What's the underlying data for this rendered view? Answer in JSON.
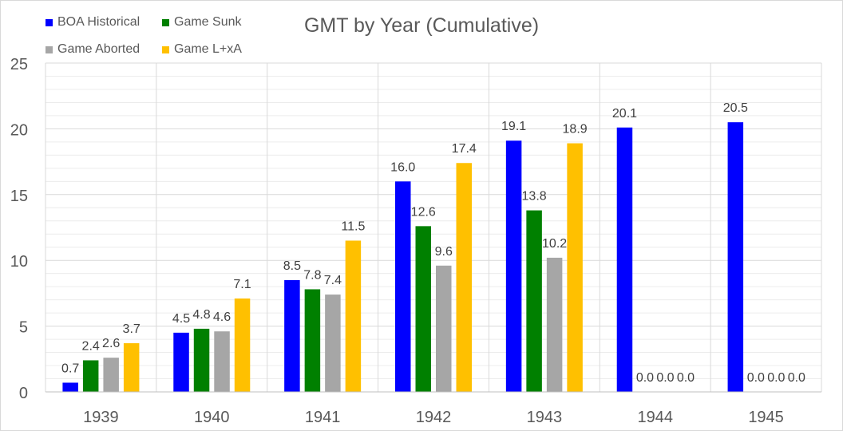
{
  "chart_data": {
    "type": "bar",
    "title": "GMT by Year (Cumulative)",
    "xlabel": "",
    "ylabel": "",
    "categories": [
      "1939",
      "1940",
      "1941",
      "1942",
      "1943",
      "1944",
      "1945"
    ],
    "ylim": [
      0,
      25
    ],
    "yticks": [
      "0",
      "5",
      "10",
      "15",
      "20",
      "25"
    ],
    "grid": true,
    "legend_position": "top-left",
    "series": [
      {
        "name": "BOA Historical",
        "color": "#0000ff",
        "values": [
          0.7,
          4.5,
          8.5,
          16.0,
          19.1,
          20.1,
          20.5
        ],
        "labels": [
          "0.7",
          "4.5",
          "8.5",
          "16.0",
          "19.1",
          "20.1",
          "20.5"
        ]
      },
      {
        "name": "Game Sunk",
        "color": "#008000",
        "values": [
          2.4,
          4.8,
          7.8,
          12.6,
          13.8,
          0.0,
          0.0
        ],
        "labels": [
          "2.4",
          "4.8",
          "7.8",
          "12.6",
          "13.8",
          "0.0",
          "0.0"
        ]
      },
      {
        "name": "Game Aborted",
        "color": "#a6a6a6",
        "values": [
          2.6,
          4.6,
          7.4,
          9.6,
          10.2,
          0.0,
          0.0
        ],
        "labels": [
          "2.6",
          "4.6",
          "7.4",
          "9.6",
          "10.2",
          "0.0",
          "0.0"
        ]
      },
      {
        "name": "Game L+xA",
        "color": "#ffc000",
        "values": [
          3.7,
          7.1,
          11.5,
          17.4,
          18.9,
          0.0,
          0.0
        ],
        "labels": [
          "3.7",
          "7.1",
          "11.5",
          "17.4",
          "18.9",
          "0.0",
          "0.0"
        ]
      }
    ]
  }
}
